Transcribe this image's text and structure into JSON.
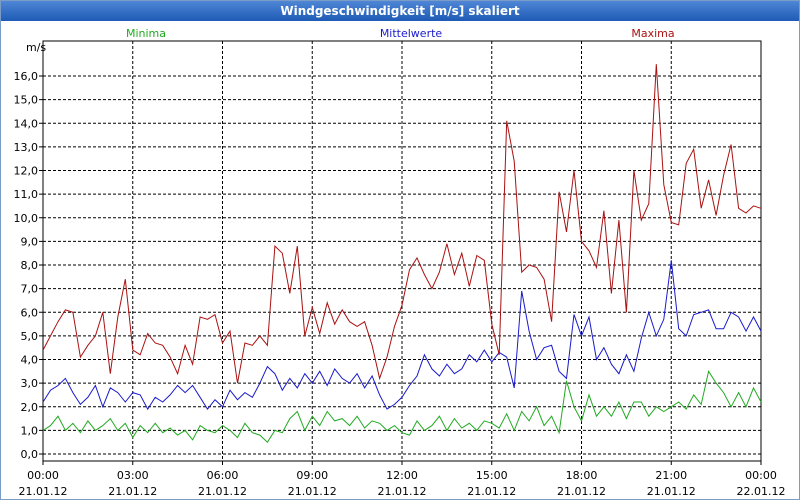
{
  "window": {
    "title": "Windgeschwindigkeit [m/s] skaliert"
  },
  "chart_data": {
    "type": "line",
    "title": "Windgeschwindigkeit [m/s] skaliert",
    "ylabel": "m/s",
    "ylim": [
      0,
      17
    ],
    "xlim": [
      0,
      24
    ],
    "grid": true,
    "y_ticks": [
      "0,0",
      "1,0",
      "2,0",
      "3,0",
      "4,0",
      "5,0",
      "6,0",
      "7,0",
      "8,0",
      "9,0",
      "10,0",
      "11,0",
      "12,0",
      "13,0",
      "14,0",
      "15,0",
      "16,0"
    ],
    "x_ticks": [
      {
        "time": "00:00",
        "date": "21.01.12"
      },
      {
        "time": "03:00",
        "date": "21.01.12"
      },
      {
        "time": "06:00",
        "date": "21.01.12"
      },
      {
        "time": "09:00",
        "date": "21.01.12"
      },
      {
        "time": "12:00",
        "date": "21.01.12"
      },
      {
        "time": "15:00",
        "date": "21.01.12"
      },
      {
        "time": "18:00",
        "date": "21.01.12"
      },
      {
        "time": "21:00",
        "date": "21.01.12"
      },
      {
        "time": "00:00",
        "date": "22.01.12"
      }
    ],
    "series": [
      {
        "name": "Minima",
        "color": "#22aa22",
        "x": [
          0,
          0.25,
          0.5,
          0.75,
          1,
          1.25,
          1.5,
          1.75,
          2,
          2.25,
          2.5,
          2.75,
          3,
          3.25,
          3.5,
          3.75,
          4,
          4.25,
          4.5,
          4.75,
          5,
          5.25,
          5.5,
          5.75,
          6,
          6.25,
          6.5,
          6.75,
          7,
          7.25,
          7.5,
          7.75,
          8,
          8.25,
          8.5,
          8.75,
          9,
          9.25,
          9.5,
          9.75,
          10,
          10.25,
          10.5,
          10.75,
          11,
          11.25,
          11.5,
          11.75,
          12,
          12.25,
          12.5,
          12.75,
          13,
          13.25,
          13.5,
          13.75,
          14,
          14.25,
          14.5,
          14.75,
          15,
          15.25,
          15.5,
          15.75,
          16,
          16.25,
          16.5,
          16.75,
          17,
          17.25,
          17.5,
          17.75,
          18,
          18.25,
          18.5,
          18.75,
          19,
          19.25,
          19.5,
          19.75,
          20,
          20.25,
          20.5,
          20.75,
          21,
          21.25,
          21.5,
          21.75,
          22,
          22.25,
          22.5,
          22.75,
          23,
          23.25,
          23.5,
          23.75,
          24
        ],
        "values": [
          1.0,
          1.2,
          1.6,
          1.0,
          1.3,
          0.9,
          1.4,
          1.0,
          1.2,
          1.5,
          1.0,
          1.3,
          0.7,
          1.2,
          0.9,
          1.3,
          0.9,
          1.1,
          0.8,
          1.0,
          0.6,
          1.2,
          1.0,
          0.9,
          1.2,
          1.0,
          0.7,
          1.3,
          0.9,
          0.8,
          0.5,
          1.0,
          0.9,
          1.5,
          1.8,
          1.0,
          1.6,
          1.2,
          1.8,
          1.4,
          1.5,
          1.2,
          1.6,
          1.1,
          1.4,
          1.3,
          1.0,
          1.2,
          0.9,
          0.8,
          1.4,
          1.0,
          1.2,
          1.6,
          1.0,
          1.5,
          1.1,
          1.3,
          1.0,
          1.4,
          1.3,
          1.1,
          1.7,
          1.0,
          1.8,
          1.4,
          2.0,
          1.2,
          1.6,
          0.9,
          3.1,
          2.0,
          1.4,
          2.5,
          1.6,
          2.0,
          1.6,
          2.2,
          1.5,
          2.2,
          2.2,
          1.6,
          2.0,
          1.8,
          2.0,
          2.2,
          1.9,
          2.5,
          2.1,
          3.5,
          3.0,
          2.6,
          2.0,
          2.6,
          2.0,
          2.8,
          2.2
        ],
        "path_label": "Minima-Verlauf"
      },
      {
        "name": "Mittelwerte",
        "color": "#1a1acc",
        "x": [
          0,
          0.25,
          0.5,
          0.75,
          1,
          1.25,
          1.5,
          1.75,
          2,
          2.25,
          2.5,
          2.75,
          3,
          3.25,
          3.5,
          3.75,
          4,
          4.25,
          4.5,
          4.75,
          5,
          5.25,
          5.5,
          5.75,
          6,
          6.25,
          6.5,
          6.75,
          7,
          7.25,
          7.5,
          7.75,
          8,
          8.25,
          8.5,
          8.75,
          9,
          9.25,
          9.5,
          9.75,
          10,
          10.25,
          10.5,
          10.75,
          11,
          11.25,
          11.5,
          11.75,
          12,
          12.25,
          12.5,
          12.75,
          13,
          13.25,
          13.5,
          13.75,
          14,
          14.25,
          14.5,
          14.75,
          15,
          15.25,
          15.5,
          15.75,
          16,
          16.25,
          16.5,
          16.75,
          17,
          17.25,
          17.5,
          17.75,
          18,
          18.25,
          18.5,
          18.75,
          19,
          19.25,
          19.5,
          19.75,
          20,
          20.25,
          20.5,
          20.75,
          21,
          21.25,
          21.5,
          21.75,
          22,
          22.25,
          22.5,
          22.75,
          23,
          23.25,
          23.5,
          23.75,
          24
        ],
        "values": [
          2.2,
          2.7,
          2.9,
          3.2,
          2.6,
          2.1,
          2.4,
          2.9,
          2.0,
          2.8,
          2.6,
          2.2,
          2.6,
          2.5,
          1.9,
          2.4,
          2.2,
          2.5,
          2.9,
          2.6,
          2.9,
          2.4,
          1.9,
          2.3,
          2.0,
          2.7,
          2.3,
          2.6,
          2.4,
          3.0,
          3.7,
          3.4,
          2.7,
          3.2,
          2.8,
          3.4,
          3.0,
          3.5,
          2.9,
          3.6,
          3.2,
          3.0,
          3.4,
          2.8,
          3.3,
          2.5,
          1.9,
          2.1,
          2.4,
          2.9,
          3.3,
          4.2,
          3.6,
          3.3,
          3.8,
          3.4,
          3.6,
          4.2,
          3.9,
          4.4,
          3.9,
          4.3,
          4.1,
          2.8,
          6.9,
          5.2,
          4.0,
          4.5,
          4.6,
          3.5,
          3.2,
          5.9,
          5.0,
          5.8,
          4.0,
          4.5,
          3.8,
          3.4,
          4.2,
          3.5,
          4.9,
          6.0,
          5.0,
          5.7,
          8.2,
          5.3,
          5.0,
          5.9,
          6.0,
          6.1,
          5.3,
          5.3,
          6.0,
          5.8,
          5.2,
          5.8,
          5.2
        ],
        "path_label": "Mittelwerte-Verlauf"
      },
      {
        "name": "Maxima",
        "color": "#aa1111",
        "x": [
          0,
          0.25,
          0.5,
          0.75,
          1,
          1.25,
          1.5,
          1.75,
          2,
          2.25,
          2.5,
          2.75,
          3,
          3.25,
          3.5,
          3.75,
          4,
          4.25,
          4.5,
          4.75,
          5,
          5.25,
          5.5,
          5.75,
          6,
          6.25,
          6.5,
          6.75,
          7,
          7.25,
          7.5,
          7.75,
          8,
          8.25,
          8.5,
          8.75,
          9,
          9.25,
          9.5,
          9.75,
          10,
          10.25,
          10.5,
          10.75,
          11,
          11.25,
          11.5,
          11.75,
          12,
          12.25,
          12.5,
          12.75,
          13,
          13.25,
          13.5,
          13.75,
          14,
          14.25,
          14.5,
          14.75,
          15,
          15.25,
          15.5,
          15.75,
          16,
          16.25,
          16.5,
          16.75,
          17,
          17.25,
          17.5,
          17.75,
          18,
          18.25,
          18.5,
          18.75,
          19,
          19.25,
          19.5,
          19.75,
          20,
          20.25,
          20.5,
          20.75,
          21,
          21.25,
          21.5,
          21.75,
          22,
          22.25,
          22.5,
          22.75,
          23,
          23.25,
          23.5,
          23.75,
          24
        ],
        "values": [
          4.4,
          5.0,
          5.6,
          6.1,
          6.0,
          4.1,
          4.6,
          5.0,
          6.0,
          3.4,
          5.8,
          7.4,
          4.4,
          4.2,
          5.1,
          4.7,
          4.6,
          4.1,
          3.4,
          4.6,
          3.8,
          5.8,
          5.7,
          5.9,
          4.7,
          5.2,
          3.0,
          4.7,
          4.6,
          5.0,
          4.6,
          8.8,
          8.5,
          6.8,
          8.8,
          5.0,
          6.2,
          5.1,
          6.4,
          5.5,
          6.1,
          5.6,
          5.4,
          5.6,
          4.6,
          3.2,
          4.1,
          5.4,
          6.3,
          7.8,
          8.3,
          7.6,
          7.0,
          7.7,
          8.9,
          7.6,
          8.5,
          7.1,
          8.4,
          8.2,
          5.5,
          4.2,
          14.1,
          12.4,
          7.7,
          8.0,
          7.9,
          7.4,
          5.6,
          11.1,
          9.4,
          12.0,
          9.0,
          8.6,
          7.9,
          10.3,
          6.8,
          9.9,
          6.0,
          12.0,
          9.9,
          10.6,
          16.5,
          11.4,
          9.8,
          9.7,
          12.3,
          12.9,
          10.4,
          11.6,
          10.1,
          11.8,
          13.1,
          10.4,
          10.2,
          10.5,
          10.4
        ],
        "path_label": "Maxima-Verlauf"
      }
    ]
  }
}
